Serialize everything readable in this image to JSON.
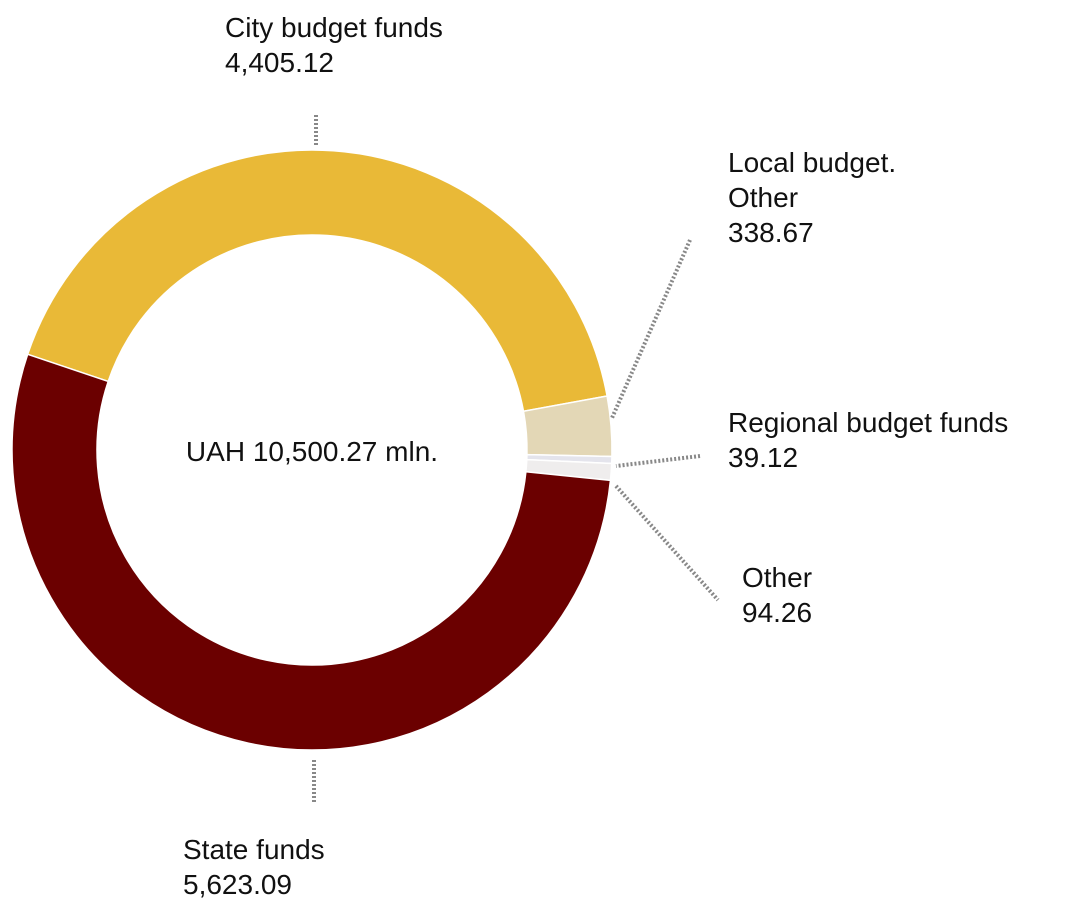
{
  "chart_data": {
    "type": "donut",
    "center_label": "UAH 10,500.27 mln.",
    "categories": [
      "City budget funds",
      "Local budget. Other",
      "Regional budget funds",
      "Other",
      "State funds"
    ],
    "values": [
      4405.12,
      338.67,
      39.12,
      94.26,
      5623.09
    ],
    "value_labels": [
      "4,405.12",
      "338.67",
      "39.12",
      "94.26",
      "5,623.09"
    ],
    "colors": [
      "#e9b937",
      "#e3d7b6",
      "#e4e4ec",
      "#efeded",
      "#6b0000"
    ]
  }
}
